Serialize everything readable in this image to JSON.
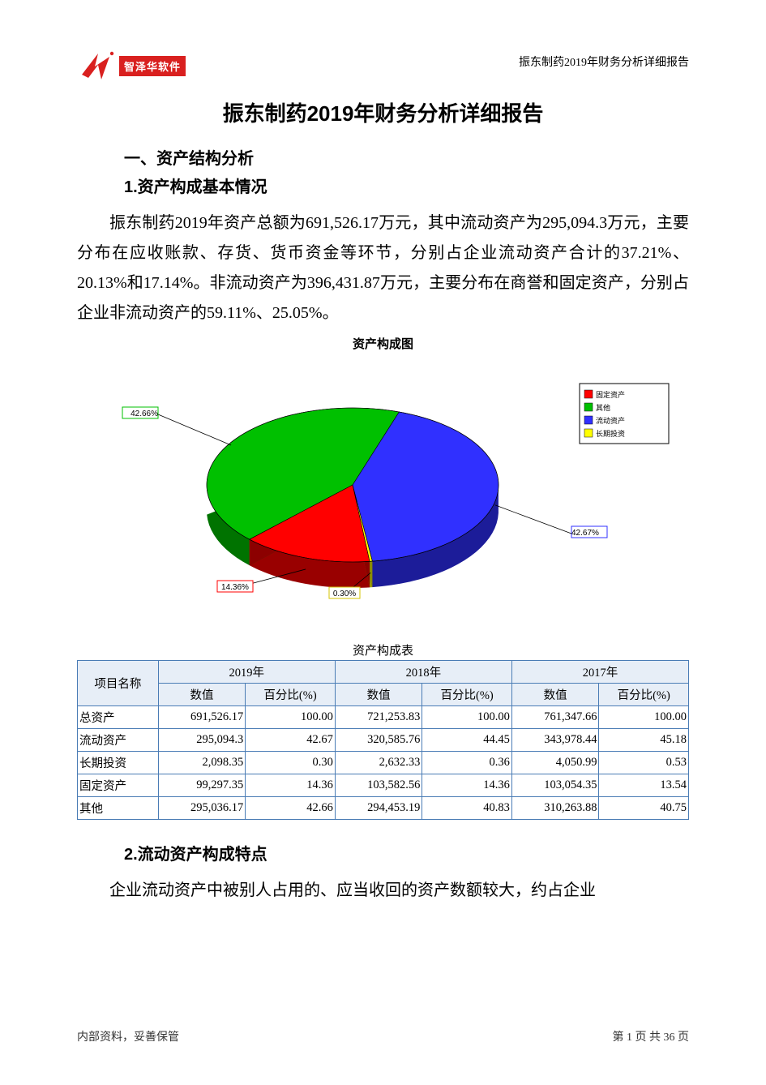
{
  "header": {
    "logo_text": "智泽华软件",
    "right_text": "振东制药2019年财务分析详细报告"
  },
  "title": "振东制药2019年财务分析详细报告",
  "section1": "一、资产结构分析",
  "sub1": "1.资产构成基本情况",
  "para1": "振东制药2019年资产总额为691,526.17万元，其中流动资产为295,094.3万元，主要分布在应收账款、存货、货币资金等环节，分别占企业流动资产合计的37.21%、20.13%和17.14%。非流动资产为396,431.87万元，主要分布在商誉和固定资产，分别占企业非流动资产的59.11%、25.05%。",
  "chart": {
    "type": "pie",
    "title": "资产构成图",
    "title_fontsize": 15,
    "background_color": "#ffffff",
    "slices": [
      {
        "label": "固定资产",
        "value": 14.36,
        "display": "14.36%",
        "color": "#ff0000",
        "box_stroke": "#ff0000"
      },
      {
        "label": "其他",
        "value": 42.66,
        "display": "42.66%",
        "color": "#00c000",
        "box_stroke": "#00c000"
      },
      {
        "label": "流动资产",
        "value": 42.67,
        "display": "42.67%",
        "color": "#3030ff",
        "box_stroke": "#3030ff"
      },
      {
        "label": "长期投资",
        "value": 0.3,
        "display": "0.30%",
        "color": "#ffff00",
        "box_stroke": "#d4c400"
      }
    ],
    "legend_items": [
      {
        "color": "#ff0000",
        "label": "固定资产"
      },
      {
        "color": "#00c000",
        "label": "其他"
      },
      {
        "color": "#3030ff",
        "label": "流动资产"
      },
      {
        "color": "#ffff00",
        "label": "长期投资"
      }
    ],
    "ellipse_outline": "#000000",
    "side_fill_darken": 0.6
  },
  "table": {
    "title": "资产构成表",
    "border_color": "#4a7cb5",
    "header_bg": "#e7eef7",
    "col_item": "项目名称",
    "years": [
      "2019年",
      "2018年",
      "2017年"
    ],
    "sub_cols": [
      "数值",
      "百分比(%)"
    ],
    "rows": [
      {
        "name": "总资产",
        "y2019_val": "691,526.17",
        "y2019_pct": "100.00",
        "y2018_val": "721,253.83",
        "y2018_pct": "100.00",
        "y2017_val": "761,347.66",
        "y2017_pct": "100.00"
      },
      {
        "name": "流动资产",
        "y2019_val": "295,094.3",
        "y2019_pct": "42.67",
        "y2018_val": "320,585.76",
        "y2018_pct": "44.45",
        "y2017_val": "343,978.44",
        "y2017_pct": "45.18"
      },
      {
        "name": "长期投资",
        "y2019_val": "2,098.35",
        "y2019_pct": "0.30",
        "y2018_val": "2,632.33",
        "y2018_pct": "0.36",
        "y2017_val": "4,050.99",
        "y2017_pct": "0.53"
      },
      {
        "name": "固定资产",
        "y2019_val": "99,297.35",
        "y2019_pct": "14.36",
        "y2018_val": "103,582.56",
        "y2018_pct": "14.36",
        "y2017_val": "103,054.35",
        "y2017_pct": "13.54"
      },
      {
        "name": "其他",
        "y2019_val": "295,036.17",
        "y2019_pct": "42.66",
        "y2018_val": "294,453.19",
        "y2018_pct": "40.83",
        "y2017_val": "310,263.88",
        "y2017_pct": "40.75"
      }
    ]
  },
  "sub2": "2.流动资产构成特点",
  "para2": "企业流动资产中被别人占用的、应当收回的资产数额较大，约占企业",
  "footer": {
    "left": "内部资料，妥善保管",
    "right_prefix": "第 ",
    "page_current": "1",
    "right_mid": " 页    共 ",
    "page_total": "36",
    "right_suffix": " 页"
  }
}
